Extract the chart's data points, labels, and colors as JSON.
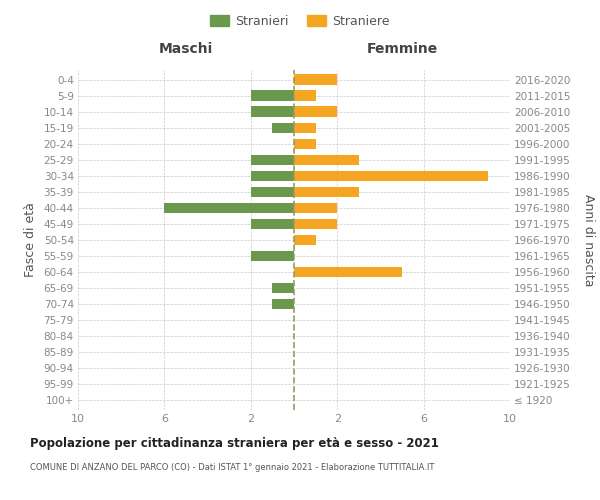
{
  "age_groups": [
    "100+",
    "95-99",
    "90-94",
    "85-89",
    "80-84",
    "75-79",
    "70-74",
    "65-69",
    "60-64",
    "55-59",
    "50-54",
    "45-49",
    "40-44",
    "35-39",
    "30-34",
    "25-29",
    "20-24",
    "15-19",
    "10-14",
    "5-9",
    "0-4"
  ],
  "birth_years": [
    "≤ 1920",
    "1921-1925",
    "1926-1930",
    "1931-1935",
    "1936-1940",
    "1941-1945",
    "1946-1950",
    "1951-1955",
    "1956-1960",
    "1961-1965",
    "1966-1970",
    "1971-1975",
    "1976-1980",
    "1981-1985",
    "1986-1990",
    "1991-1995",
    "1996-2000",
    "2001-2005",
    "2006-2010",
    "2011-2015",
    "2016-2020"
  ],
  "males": [
    0,
    0,
    0,
    0,
    0,
    0,
    1,
    1,
    0,
    2,
    0,
    2,
    6,
    2,
    2,
    2,
    0,
    1,
    2,
    2,
    0
  ],
  "females": [
    0,
    0,
    0,
    0,
    0,
    0,
    0,
    0,
    5,
    0,
    1,
    2,
    2,
    3,
    9,
    3,
    1,
    1,
    2,
    1,
    2
  ],
  "male_color": "#6a994e",
  "female_color": "#f4a623",
  "dashed_line_color": "#999966",
  "title": "Popolazione per cittadinanza straniera per età e sesso - 2021",
  "subtitle": "COMUNE DI ANZANO DEL PARCO (CO) - Dati ISTAT 1° gennaio 2021 - Elaborazione TUTTITALIA.IT",
  "xlabel_left": "Maschi",
  "xlabel_right": "Femmine",
  "ylabel_left": "Fasce di età",
  "ylabel_right": "Anni di nascita",
  "legend_male": "Stranieri",
  "legend_female": "Straniere",
  "xmax": 10,
  "background_color": "#ffffff",
  "grid_color": "#cccccc"
}
